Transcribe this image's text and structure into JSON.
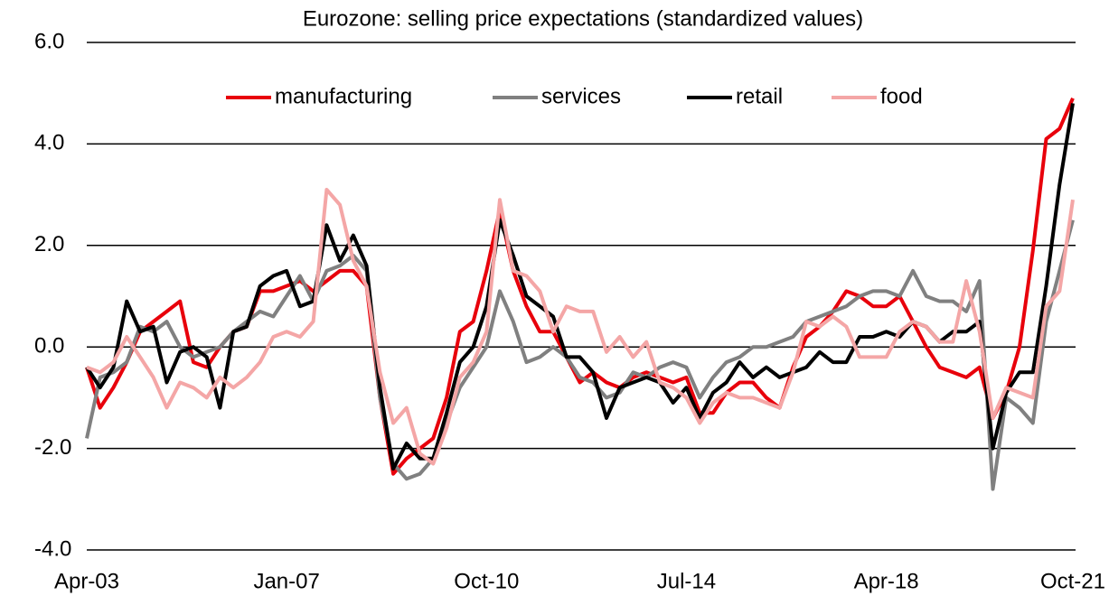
{
  "chart_data": {
    "type": "line",
    "title": "Eurozone: selling price expectations (standardized values)",
    "categories": [
      "Apr-03",
      null,
      null,
      null,
      null,
      null,
      null,
      null,
      null,
      null,
      null,
      null,
      null,
      null,
      null,
      "Jan-07",
      null,
      null,
      null,
      null,
      null,
      null,
      null,
      null,
      null,
      null,
      null,
      null,
      null,
      null,
      "Oct-10",
      null,
      null,
      null,
      null,
      null,
      null,
      null,
      null,
      null,
      null,
      null,
      null,
      null,
      null,
      "Jul-14",
      null,
      null,
      null,
      null,
      null,
      null,
      null,
      null,
      null,
      null,
      null,
      null,
      null,
      null,
      "Apr-18",
      null,
      null,
      null,
      null,
      null,
      null,
      null,
      null,
      null,
      null,
      null,
      null,
      null,
      "Oct-21"
    ],
    "series": [
      {
        "name": "manufacturing",
        "color": "#e8000b",
        "values": [
          -0.4,
          -1.2,
          -0.8,
          -0.3,
          0.3,
          0.5,
          0.7,
          0.9,
          -0.3,
          -0.4,
          0.0,
          0.3,
          0.4,
          1.1,
          1.1,
          1.2,
          1.3,
          1.1,
          1.3,
          1.5,
          1.5,
          1.2,
          -1.0,
          -2.5,
          -2.2,
          -2.0,
          -1.8,
          -1.0,
          0.3,
          0.5,
          1.5,
          2.7,
          1.5,
          0.8,
          0.3,
          0.3,
          -0.2,
          -0.7,
          -0.5,
          -0.7,
          -0.8,
          -0.6,
          -0.5,
          -0.6,
          -0.7,
          -0.6,
          -1.3,
          -1.3,
          -0.9,
          -0.7,
          -0.7,
          -1.0,
          -1.2,
          -0.4,
          0.2,
          0.4,
          0.7,
          1.1,
          1.0,
          0.8,
          0.8,
          1.0,
          0.5,
          0.0,
          -0.4,
          -0.5,
          -0.6,
          -0.4,
          -1.4,
          -0.9,
          0.0,
          1.9,
          4.1,
          4.3,
          4.9
        ]
      },
      {
        "name": "services",
        "color": "#808080",
        "values": [
          -1.8,
          -0.6,
          -0.5,
          -0.3,
          0.4,
          0.3,
          0.5,
          0.0,
          -0.2,
          -0.1,
          0.0,
          0.3,
          0.5,
          0.7,
          0.6,
          1.0,
          1.4,
          0.9,
          1.5,
          1.6,
          1.8,
          1.5,
          -1.0,
          -2.3,
          -2.6,
          -2.5,
          -2.2,
          -1.5,
          -0.8,
          -0.4,
          0.0,
          1.1,
          0.5,
          -0.3,
          -0.2,
          0.0,
          -0.2,
          -0.6,
          -0.7,
          -1.0,
          -0.9,
          -0.5,
          -0.6,
          -0.4,
          -0.3,
          -0.4,
          -1.0,
          -0.6,
          -0.3,
          -0.2,
          0.0,
          0.0,
          0.1,
          0.2,
          0.5,
          0.6,
          0.7,
          0.8,
          1.0,
          1.1,
          1.1,
          1.0,
          1.5,
          1.0,
          0.9,
          0.9,
          0.7,
          1.3,
          -2.8,
          -1.0,
          -1.2,
          -1.5,
          0.5,
          1.5,
          2.5
        ]
      },
      {
        "name": "retail",
        "color": "#000000",
        "values": [
          -0.4,
          -0.8,
          -0.4,
          0.9,
          0.3,
          0.4,
          -0.7,
          -0.1,
          0.0,
          -0.2,
          -1.2,
          0.3,
          0.4,
          1.2,
          1.4,
          1.5,
          0.8,
          0.9,
          2.4,
          1.7,
          2.2,
          1.6,
          -0.8,
          -2.4,
          -1.9,
          -2.2,
          -2.2,
          -1.3,
          -0.3,
          0.0,
          0.8,
          2.5,
          1.8,
          1.0,
          0.8,
          0.6,
          -0.2,
          -0.2,
          -0.5,
          -1.4,
          -0.8,
          -0.7,
          -0.6,
          -0.7,
          -1.1,
          -0.8,
          -1.4,
          -0.9,
          -0.7,
          -0.3,
          -0.6,
          -0.4,
          -0.6,
          -0.5,
          -0.4,
          -0.1,
          -0.3,
          -0.3,
          0.2,
          0.2,
          0.3,
          0.2,
          0.5,
          0.4,
          0.1,
          0.3,
          0.3,
          0.5,
          -2.0,
          -0.9,
          -0.5,
          -0.5,
          1.2,
          3.2,
          4.8
        ]
      },
      {
        "name": "food",
        "color": "#f4a6a6",
        "values": [
          -0.4,
          -0.5,
          -0.3,
          0.2,
          -0.2,
          -0.6,
          -1.2,
          -0.7,
          -0.8,
          -1.0,
          -0.6,
          -0.8,
          -0.6,
          -0.3,
          0.2,
          0.3,
          0.2,
          0.5,
          3.1,
          2.8,
          1.7,
          1.2,
          -0.5,
          -1.5,
          -1.2,
          -2.1,
          -2.3,
          -1.6,
          -0.6,
          -0.3,
          0.3,
          2.9,
          1.5,
          1.4,
          1.1,
          0.3,
          0.8,
          0.7,
          0.7,
          -0.1,
          0.2,
          -0.2,
          0.1,
          -0.7,
          -0.8,
          -1.0,
          -1.5,
          -1.1,
          -0.9,
          -1.0,
          -1.0,
          -1.1,
          -1.2,
          -0.5,
          0.5,
          0.4,
          0.6,
          0.4,
          -0.2,
          -0.2,
          -0.2,
          0.3,
          0.5,
          0.4,
          0.1,
          0.1,
          1.3,
          0.3,
          -1.4,
          -0.8,
          -0.9,
          -1.0,
          0.8,
          1.1,
          2.9
        ]
      }
    ],
    "ylim": [
      -4,
      6
    ],
    "yticks": [
      {
        "value": -4,
        "label": "-4.0"
      },
      {
        "value": -2,
        "label": "-2.0"
      },
      {
        "value": 0,
        "label": "0.0"
      },
      {
        "value": 2,
        "label": "2.0"
      },
      {
        "value": 4,
        "label": "4.0"
      },
      {
        "value": 6,
        "label": "6.0"
      }
    ],
    "grid": true,
    "legend": "top"
  }
}
